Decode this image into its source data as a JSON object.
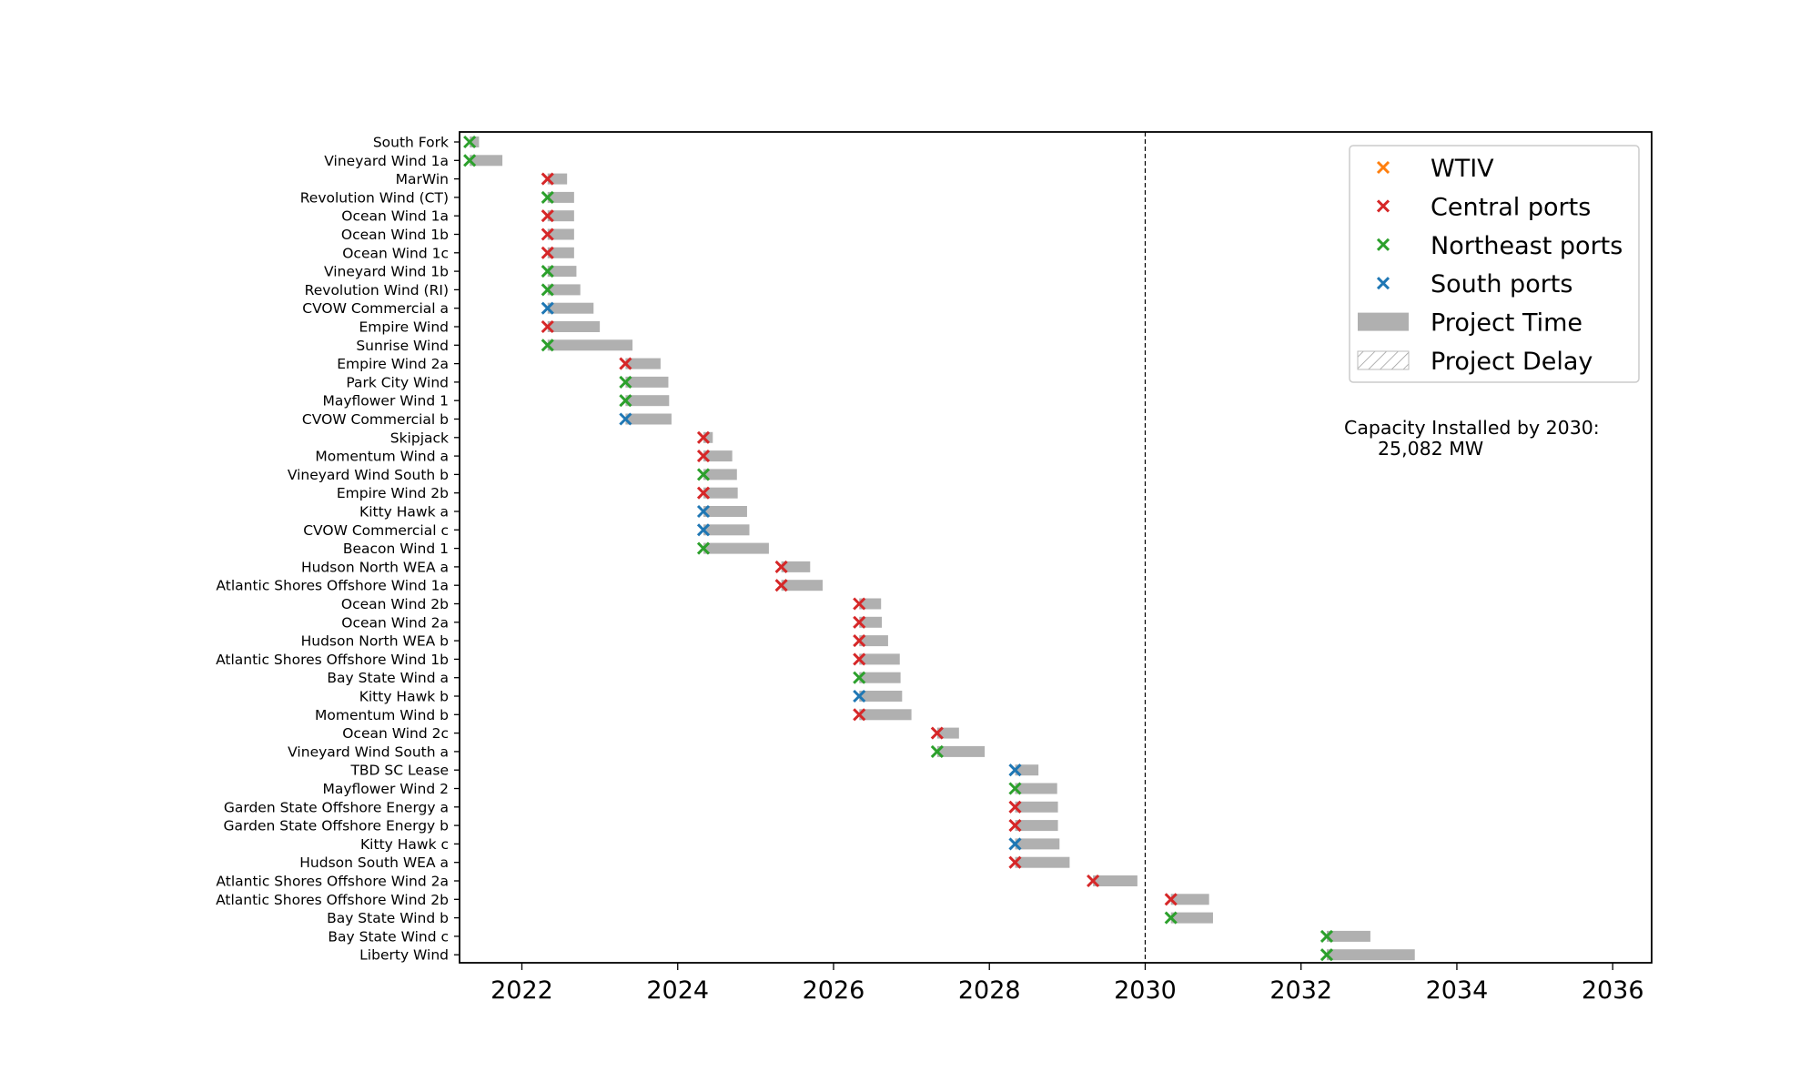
{
  "chart_data": {
    "type": "gantt",
    "title": "",
    "xlabel": "",
    "ylabel": "",
    "xlim": [
      2021.2,
      2036.5
    ],
    "xticks": [
      2022,
      2024,
      2026,
      2028,
      2030,
      2032,
      2034,
      2036
    ],
    "reference_line": {
      "x": 2030,
      "style": "dashed"
    },
    "colors": {
      "WTIV": "#ff7f0e",
      "Central ports": "#d62728",
      "Northeast ports": "#2ca02c",
      "South ports": "#1f77b4",
      "Project Time": "#b0b0b0"
    },
    "legend": {
      "placement": "upper-right",
      "entries": [
        {
          "label": "WTIV",
          "kind": "marker",
          "color": "#ff7f0e"
        },
        {
          "label": "Central ports",
          "kind": "marker",
          "color": "#d62728"
        },
        {
          "label": "Northeast ports",
          "kind": "marker",
          "color": "#2ca02c"
        },
        {
          "label": "South ports",
          "kind": "marker",
          "color": "#1f77b4"
        },
        {
          "label": "Project Time",
          "kind": "bar",
          "color": "#b0b0b0"
        },
        {
          "label": "Project Delay",
          "kind": "hatch",
          "color": "#b0b0b0"
        }
      ]
    },
    "annotation": {
      "line1": "Capacity Installed by 2030:",
      "line2": "25,082 MW"
    },
    "projects": [
      {
        "name": "South Fork",
        "start": 2021.33,
        "end": 2021.45,
        "port": "Northeast ports"
      },
      {
        "name": "Vineyard Wind 1a",
        "start": 2021.33,
        "end": 2021.75,
        "port": "Northeast ports"
      },
      {
        "name": "MarWin",
        "start": 2022.33,
        "end": 2022.58,
        "port": "Central ports"
      },
      {
        "name": "Revolution Wind (CT)",
        "start": 2022.33,
        "end": 2022.67,
        "port": "Northeast ports"
      },
      {
        "name": "Ocean Wind 1a",
        "start": 2022.33,
        "end": 2022.67,
        "port": "Central ports"
      },
      {
        "name": "Ocean Wind 1b",
        "start": 2022.33,
        "end": 2022.67,
        "port": "Central ports"
      },
      {
        "name": "Ocean Wind 1c",
        "start": 2022.33,
        "end": 2022.67,
        "port": "Central ports"
      },
      {
        "name": "Vineyard Wind 1b",
        "start": 2022.33,
        "end": 2022.7,
        "port": "Northeast ports"
      },
      {
        "name": "Revolution Wind (RI)",
        "start": 2022.33,
        "end": 2022.75,
        "port": "Northeast ports"
      },
      {
        "name": "CVOW Commercial a",
        "start": 2022.33,
        "end": 2022.92,
        "port": "South ports"
      },
      {
        "name": "Empire Wind",
        "start": 2022.33,
        "end": 2023.0,
        "port": "Central ports"
      },
      {
        "name": "Sunrise Wind",
        "start": 2022.33,
        "end": 2023.42,
        "port": "Northeast ports"
      },
      {
        "name": "Empire Wind 2a",
        "start": 2023.33,
        "end": 2023.78,
        "port": "Central ports"
      },
      {
        "name": "Park City Wind",
        "start": 2023.33,
        "end": 2023.88,
        "port": "Northeast ports"
      },
      {
        "name": "Mayflower Wind 1",
        "start": 2023.33,
        "end": 2023.89,
        "port": "Northeast ports"
      },
      {
        "name": "CVOW Commercial b",
        "start": 2023.33,
        "end": 2023.92,
        "port": "South ports"
      },
      {
        "name": "Skipjack",
        "start": 2024.33,
        "end": 2024.45,
        "port": "Central ports"
      },
      {
        "name": "Momentum Wind a",
        "start": 2024.33,
        "end": 2024.7,
        "port": "Central ports"
      },
      {
        "name": "Vineyard Wind South b",
        "start": 2024.33,
        "end": 2024.76,
        "port": "Northeast ports"
      },
      {
        "name": "Empire Wind 2b",
        "start": 2024.33,
        "end": 2024.77,
        "port": "Central ports"
      },
      {
        "name": "Kitty Hawk a",
        "start": 2024.33,
        "end": 2024.89,
        "port": "South ports"
      },
      {
        "name": "CVOW Commercial c",
        "start": 2024.33,
        "end": 2024.92,
        "port": "South ports"
      },
      {
        "name": "Beacon Wind 1",
        "start": 2024.33,
        "end": 2025.17,
        "port": "Northeast ports"
      },
      {
        "name": "Hudson North WEA a",
        "start": 2025.33,
        "end": 2025.7,
        "port": "Central ports"
      },
      {
        "name": "Atlantic Shores Offshore Wind 1a",
        "start": 2025.33,
        "end": 2025.86,
        "port": "Central ports"
      },
      {
        "name": "Ocean Wind 2b",
        "start": 2026.33,
        "end": 2026.61,
        "port": "Central ports"
      },
      {
        "name": "Ocean Wind 2a",
        "start": 2026.33,
        "end": 2026.62,
        "port": "Central ports"
      },
      {
        "name": "Hudson North WEA b",
        "start": 2026.33,
        "end": 2026.7,
        "port": "Central ports"
      },
      {
        "name": "Atlantic Shores Offshore Wind 1b",
        "start": 2026.33,
        "end": 2026.85,
        "port": "Central ports"
      },
      {
        "name": "Bay State Wind a",
        "start": 2026.33,
        "end": 2026.86,
        "port": "Northeast ports"
      },
      {
        "name": "Kitty Hawk b",
        "start": 2026.33,
        "end": 2026.88,
        "port": "South ports"
      },
      {
        "name": "Momentum Wind b",
        "start": 2026.33,
        "end": 2027.0,
        "port": "Central ports"
      },
      {
        "name": "Ocean Wind 2c",
        "start": 2027.33,
        "end": 2027.61,
        "port": "Central ports"
      },
      {
        "name": "Vineyard Wind South a",
        "start": 2027.33,
        "end": 2027.94,
        "port": "Northeast ports"
      },
      {
        "name": "TBD SC Lease",
        "start": 2028.33,
        "end": 2028.63,
        "port": "South ports"
      },
      {
        "name": "Mayflower Wind 2",
        "start": 2028.33,
        "end": 2028.87,
        "port": "Northeast ports"
      },
      {
        "name": "Garden State Offshore Energy a",
        "start": 2028.33,
        "end": 2028.88,
        "port": "Central ports"
      },
      {
        "name": "Garden State Offshore Energy b",
        "start": 2028.33,
        "end": 2028.88,
        "port": "Central ports"
      },
      {
        "name": "Kitty Hawk c",
        "start": 2028.33,
        "end": 2028.9,
        "port": "South ports"
      },
      {
        "name": "Hudson South WEA a",
        "start": 2028.33,
        "end": 2029.03,
        "port": "Central ports"
      },
      {
        "name": "Atlantic Shores Offshore Wind 2a",
        "start": 2029.33,
        "end": 2029.9,
        "port": "Central ports"
      },
      {
        "name": "Atlantic Shores Offshore Wind 2b",
        "start": 2030.33,
        "end": 2030.82,
        "port": "Central ports"
      },
      {
        "name": "Bay State Wind b",
        "start": 2030.33,
        "end": 2030.87,
        "port": "Northeast ports"
      },
      {
        "name": "Bay State Wind c",
        "start": 2032.33,
        "end": 2032.89,
        "port": "Northeast ports"
      },
      {
        "name": "Liberty Wind",
        "start": 2032.33,
        "end": 2033.46,
        "port": "Northeast ports"
      }
    ]
  }
}
